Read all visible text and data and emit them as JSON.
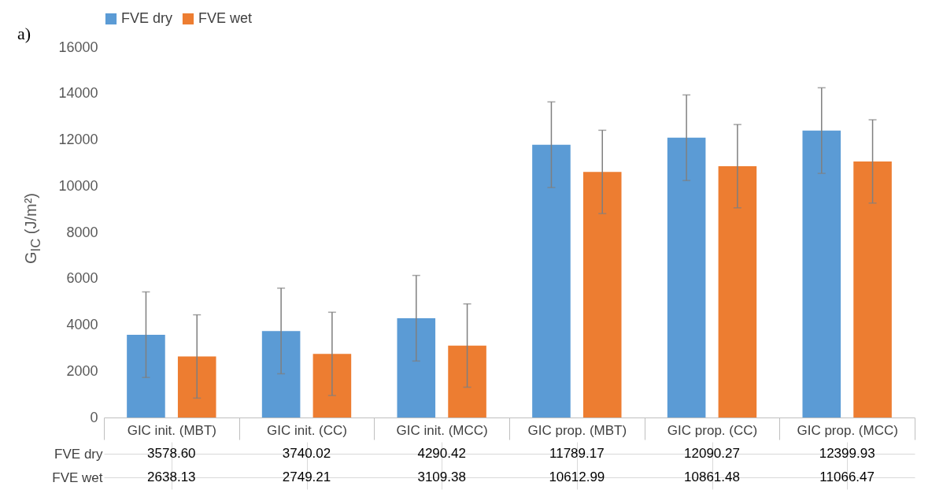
{
  "chart_data": {
    "type": "bar",
    "ylabel": "G$_{IC}$ (J/m²)",
    "annotations": [
      "a)"
    ],
    "categories": [
      "GIC init. (MBT)",
      "GIC init. (CC)",
      "GIC init. (MCC)",
      "GIC prop. (MBT)",
      "GIC prop. (CC)",
      "GIC prop. (MCC)"
    ],
    "series": [
      {
        "name": "FVE dry",
        "color": "#5b9bd5",
        "values": [
          3578.6,
          3740.02,
          4290.42,
          11789.17,
          12090.27,
          12399.93
        ],
        "value_labels": [
          "3578.60",
          "3740.02",
          "4290.42",
          "11789.17",
          "12090.27",
          "12399.93"
        ],
        "errors": [
          1850,
          1850,
          1850,
          1850,
          1850,
          1850
        ]
      },
      {
        "name": "FVE wet",
        "color": "#ed7d31",
        "values": [
          2638.13,
          2749.21,
          3109.38,
          10612.99,
          10861.48,
          11066.47
        ],
        "value_labels": [
          "2638.13",
          "2749.21",
          "3109.38",
          "10612.99",
          "10861.48",
          "11066.47"
        ],
        "errors": [
          1800,
          1800,
          1800,
          1800,
          1800,
          1800
        ]
      }
    ],
    "ylim": [
      0,
      16000
    ],
    "yticks": [
      0,
      2000,
      4000,
      6000,
      8000,
      10000,
      12000,
      14000,
      16000
    ],
    "legend": "top",
    "grid": false
  }
}
